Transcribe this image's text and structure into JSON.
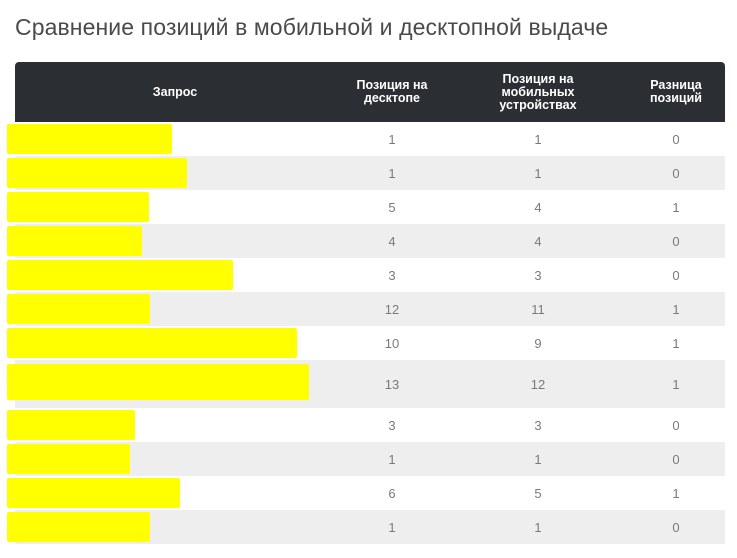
{
  "title": "Сравнение позиций в мобильной и десктопной выдаче",
  "colors": {
    "header_bg": "#2b2f33",
    "alt_row": "#eeeeee",
    "redaction": "#ffff00",
    "text": "#7a7a7a"
  },
  "table": {
    "headers": {
      "query": "Запрос",
      "desktop": "Позиция на\nдесктопе",
      "mobile": "Позиция на\nмобильных\nустройствах",
      "diff": "Разница\nпозиций"
    },
    "rows": [
      {
        "query": "",
        "desktop": "1",
        "mobile": "1",
        "diff": "0"
      },
      {
        "query": "",
        "desktop": "1",
        "mobile": "1",
        "diff": "0"
      },
      {
        "query": "",
        "desktop": "5",
        "mobile": "4",
        "diff": "1"
      },
      {
        "query": "",
        "desktop": "4",
        "mobile": "4",
        "diff": "0"
      },
      {
        "query": "",
        "desktop": "3",
        "mobile": "3",
        "diff": "0"
      },
      {
        "query": "",
        "desktop": "12",
        "mobile": "11",
        "diff": "1"
      },
      {
        "query": "",
        "desktop": "10",
        "mobile": "9",
        "diff": "1"
      },
      {
        "query": "",
        "desktop": "13",
        "mobile": "12",
        "diff": "1"
      },
      {
        "query": "",
        "desktop": "3",
        "mobile": "3",
        "diff": "0"
      },
      {
        "query": "",
        "desktop": "1",
        "mobile": "1",
        "diff": "0"
      },
      {
        "query": "",
        "desktop": "6",
        "mobile": "5",
        "diff": "1"
      },
      {
        "query": "",
        "desktop": "1",
        "mobile": "1",
        "diff": "0"
      }
    ]
  }
}
